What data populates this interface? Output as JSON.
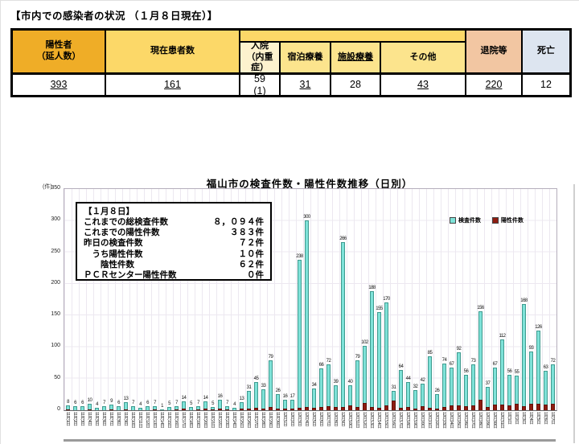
{
  "page": {
    "title": "【市内での感染者の状況 （１月８日現在）】"
  },
  "table": {
    "columns": [
      {
        "label": "陽性者\n（延人数）",
        "value": "393",
        "underline": true
      },
      {
        "label": "現在患者数",
        "value": "161",
        "underline": true
      },
      {
        "label": "入院\n（内重症）",
        "value": "59\n(1)",
        "underline": false
      },
      {
        "label": "宿泊療養",
        "value": "31",
        "underline": true
      },
      {
        "label": "施設療養",
        "value": "28",
        "underline": false
      },
      {
        "label": "その他",
        "value": "43",
        "underline": true
      },
      {
        "label": "退院等",
        "value": "220",
        "underline": true
      },
      {
        "label": "死亡",
        "value": "12",
        "underline": false
      }
    ]
  },
  "info_box": {
    "heading": "【１月８日】",
    "lines": [
      {
        "label": "これまでの総検査件数",
        "value": "８，０９４件"
      },
      {
        "label": "これまでの陽性件数",
        "value": "３８３件"
      },
      {
        "label": "昨日の検査件数",
        "value": "７２件"
      },
      {
        "label": "　うち陽性件数",
        "value": "１０件"
      },
      {
        "label": "　　陰性件数",
        "value": "６２件"
      },
      {
        "label": "ＰＣＲセンター陽性件数",
        "value": "０件"
      }
    ]
  },
  "chart_data": {
    "type": "bar",
    "title": "福山市の検査件数・陽性件数推移（日別）",
    "y_unit": "(件)",
    "ylim": [
      0,
      350
    ],
    "ytick_step": 50,
    "grid": true,
    "legend_position": "top-right",
    "categories": [
      "11月1日",
      "11月2日",
      "11月3日",
      "11月4日",
      "11月5日",
      "11月6日",
      "11月7日",
      "11月8日",
      "11月9日",
      "11月10日",
      "11月11日",
      "11月12日",
      "11月13日",
      "11月14日",
      "11月15日",
      "11月16日",
      "11月17日",
      "11月18日",
      "11月19日",
      "11月20日",
      "11月21日",
      "11月22日",
      "11月23日",
      "11月24日",
      "11月25日",
      "11月26日",
      "11月27日",
      "11月28日",
      "11月29日",
      "11月30日",
      "12月1日",
      "12月2日",
      "12月3日",
      "12月4日",
      "12月5日",
      "12月6日",
      "12月7日",
      "12月8日",
      "12月9日",
      "12月10日",
      "12月11日",
      "12月12日",
      "12月13日",
      "12月14日",
      "12月15日",
      "12月16日",
      "12月17日",
      "12月18日",
      "12月19日",
      "12月20日",
      "12月21日",
      "12月22日",
      "12月23日",
      "12月24日",
      "12月25日",
      "12月26日",
      "12月27日",
      "12月28日",
      "12月29日",
      "12月30日",
      "12月31日",
      "1月1日",
      "1月2日",
      "1月3日",
      "1月4日",
      "1月5日",
      "1月6日",
      "1月7日"
    ],
    "series": [
      {
        "name": "検査件数",
        "color": "#7ee2d8",
        "values": [
          8,
          6,
          6,
          10,
          4,
          7,
          9,
          6,
          13,
          7,
          4,
          6,
          7,
          1,
          5,
          7,
          14,
          5,
          7,
          14,
          5,
          16,
          7,
          4,
          13,
          31,
          45,
          33,
          79,
          26,
          16,
          17,
          238,
          300,
          34,
          66,
          72,
          39,
          266,
          40,
          79,
          102,
          188,
          155,
          170,
          31,
          64,
          44,
          32,
          42,
          85,
          26,
          74,
          67,
          92,
          56,
          73,
          156,
          37,
          67,
          112,
          56,
          55,
          168,
          93,
          126,
          63,
          72
        ]
      },
      {
        "name": "陽性件数",
        "color": "#8e1b10",
        "values": [
          1,
          0,
          0,
          1,
          0,
          0,
          1,
          0,
          1,
          0,
          0,
          0,
          1,
          0,
          0,
          1,
          2,
          0,
          1,
          2,
          1,
          2,
          1,
          0,
          2,
          3,
          4,
          2,
          5,
          2,
          2,
          2,
          4,
          5,
          4,
          5,
          6,
          5,
          5,
          8,
          5,
          12,
          5,
          4,
          8,
          15,
          4,
          5,
          3,
          6,
          4,
          3,
          5,
          8,
          8,
          7,
          8,
          16,
          5,
          9,
          9,
          8,
          10,
          6,
          10,
          10,
          9,
          10
        ]
      }
    ]
  }
}
